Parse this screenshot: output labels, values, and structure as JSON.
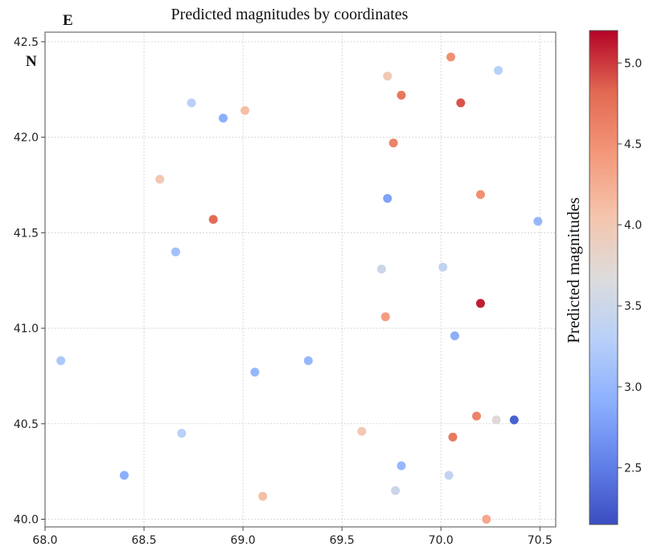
{
  "chart_data": {
    "type": "scatter",
    "title": "Predicted magnitudes by coordinates",
    "corner_labels": {
      "x_axis_letter": "E",
      "y_axis_letter": "N"
    },
    "xlabel": "",
    "ylabel": "",
    "xlim": [
      68.0,
      70.58
    ],
    "ylim": [
      39.96,
      42.55
    ],
    "x_ticks": [
      "68.0",
      "68.5",
      "69.0",
      "69.5",
      "70.0",
      "70.5"
    ],
    "y_ticks": [
      "40.0",
      "40.5",
      "41.0",
      "41.5",
      "42.0",
      "42.5"
    ],
    "grid": true,
    "colorbar": {
      "label": "Predicted magnitudes",
      "min": 2.15,
      "max": 5.2,
      "ticks": [
        "2.5",
        "3.0",
        "3.5",
        "4.0",
        "4.5",
        "5.0"
      ],
      "colormap": "coolwarm"
    },
    "points": [
      {
        "x": 70.05,
        "y": 42.42,
        "value": 4.5
      },
      {
        "x": 70.29,
        "y": 42.35,
        "value": 3.3
      },
      {
        "x": 69.73,
        "y": 42.32,
        "value": 4.0
      },
      {
        "x": 69.8,
        "y": 42.22,
        "value": 4.7
      },
      {
        "x": 70.1,
        "y": 42.18,
        "value": 4.9
      },
      {
        "x": 68.74,
        "y": 42.18,
        "value": 3.3
      },
      {
        "x": 69.01,
        "y": 42.14,
        "value": 4.1
      },
      {
        "x": 68.9,
        "y": 42.1,
        "value": 2.9
      },
      {
        "x": 69.76,
        "y": 41.97,
        "value": 4.6
      },
      {
        "x": 68.58,
        "y": 41.78,
        "value": 4.0
      },
      {
        "x": 70.2,
        "y": 41.7,
        "value": 4.5
      },
      {
        "x": 69.73,
        "y": 41.68,
        "value": 2.8
      },
      {
        "x": 68.85,
        "y": 41.57,
        "value": 4.8
      },
      {
        "x": 70.49,
        "y": 41.56,
        "value": 3.0
      },
      {
        "x": 68.66,
        "y": 41.4,
        "value": 3.1
      },
      {
        "x": 70.01,
        "y": 41.32,
        "value": 3.4
      },
      {
        "x": 69.7,
        "y": 41.31,
        "value": 3.5
      },
      {
        "x": 70.2,
        "y": 41.13,
        "value": 5.1
      },
      {
        "x": 69.72,
        "y": 41.06,
        "value": 4.4
      },
      {
        "x": 70.07,
        "y": 40.96,
        "value": 2.9
      },
      {
        "x": 68.08,
        "y": 40.83,
        "value": 3.2
      },
      {
        "x": 69.33,
        "y": 40.83,
        "value": 3.0
      },
      {
        "x": 69.06,
        "y": 40.77,
        "value": 3.0
      },
      {
        "x": 70.18,
        "y": 40.54,
        "value": 4.6
      },
      {
        "x": 70.28,
        "y": 40.52,
        "value": 3.7
      },
      {
        "x": 70.37,
        "y": 40.52,
        "value": 2.3
      },
      {
        "x": 69.6,
        "y": 40.46,
        "value": 4.0
      },
      {
        "x": 68.69,
        "y": 40.45,
        "value": 3.3
      },
      {
        "x": 70.06,
        "y": 40.43,
        "value": 4.7
      },
      {
        "x": 69.8,
        "y": 40.28,
        "value": 3.0
      },
      {
        "x": 68.4,
        "y": 40.23,
        "value": 2.9
      },
      {
        "x": 70.04,
        "y": 40.23,
        "value": 3.4
      },
      {
        "x": 69.77,
        "y": 40.15,
        "value": 3.5
      },
      {
        "x": 69.1,
        "y": 40.12,
        "value": 4.1
      },
      {
        "x": 70.23,
        "y": 40.0,
        "value": 4.3
      }
    ]
  }
}
